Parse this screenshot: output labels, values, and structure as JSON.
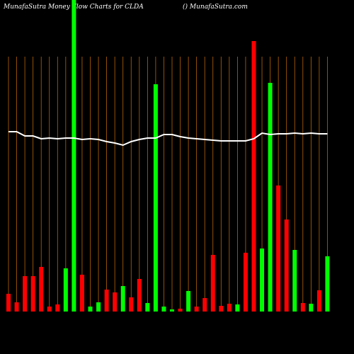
{
  "chart_data": {
    "type": "bar",
    "title": "MunafaSutra  Money Flow  Charts for CLDA",
    "subtitle": "() MunafaSutra.com",
    "categories": [
      null,
      null,
      null,
      null,
      null,
      null,
      null,
      null,
      null,
      null,
      null,
      null,
      null,
      null,
      null,
      null,
      null,
      null,
      null,
      null,
      null,
      null,
      null,
      null,
      null,
      null,
      null,
      null,
      null,
      null,
      null,
      null,
      null,
      null,
      null,
      null,
      null,
      null,
      null,
      null
    ],
    "values": [
      25,
      13,
      50,
      50,
      63,
      7,
      10,
      61,
      440,
      52,
      7,
      13,
      31,
      27,
      36,
      20,
      46,
      12,
      321,
      7,
      3,
      4,
      29,
      7,
      19,
      80,
      8,
      11,
      10,
      83,
      382,
      89,
      323,
      178,
      130,
      87,
      12,
      11,
      30,
      78
    ],
    "colors": [
      "#ff0000",
      "#ff0000",
      "#ff0000",
      "#ff0000",
      "#ff0000",
      "#ff0000",
      "#ff0000",
      "#00ff00",
      "#00ff00",
      "#ff0000",
      "#00ff00",
      "#00ff00",
      "#ff0000",
      "#ff0000",
      "#00ff00",
      "#ff0000",
      "#ff0000",
      "#00ff00",
      "#00ff00",
      "#00ff00",
      "#00ff00",
      "#ff0000",
      "#00ff00",
      "#ff0000",
      "#ff0000",
      "#ff0000",
      "#ff0000",
      "#ff0000",
      "#00ff00",
      "#ff0000",
      "#ff0000",
      "#00ff00",
      "#00ff00",
      "#ff0000",
      "#ff0000",
      "#00ff00",
      "#ff0000",
      "#00ff00",
      "#ff0000",
      "#00ff00"
    ],
    "line": {
      "color": "#ffffff",
      "values": [
        254,
        254,
        248,
        248,
        244,
        245,
        244,
        245,
        245,
        243,
        244,
        243,
        240,
        238,
        235,
        240,
        243,
        245,
        245,
        250,
        250,
        247,
        245,
        244,
        243,
        242,
        241,
        241,
        241,
        241,
        244,
        252,
        250,
        251,
        251,
        252,
        251,
        252,
        251,
        251
      ]
    },
    "ylim": [
      0,
      440
    ],
    "grid_color": "#b8650a"
  }
}
